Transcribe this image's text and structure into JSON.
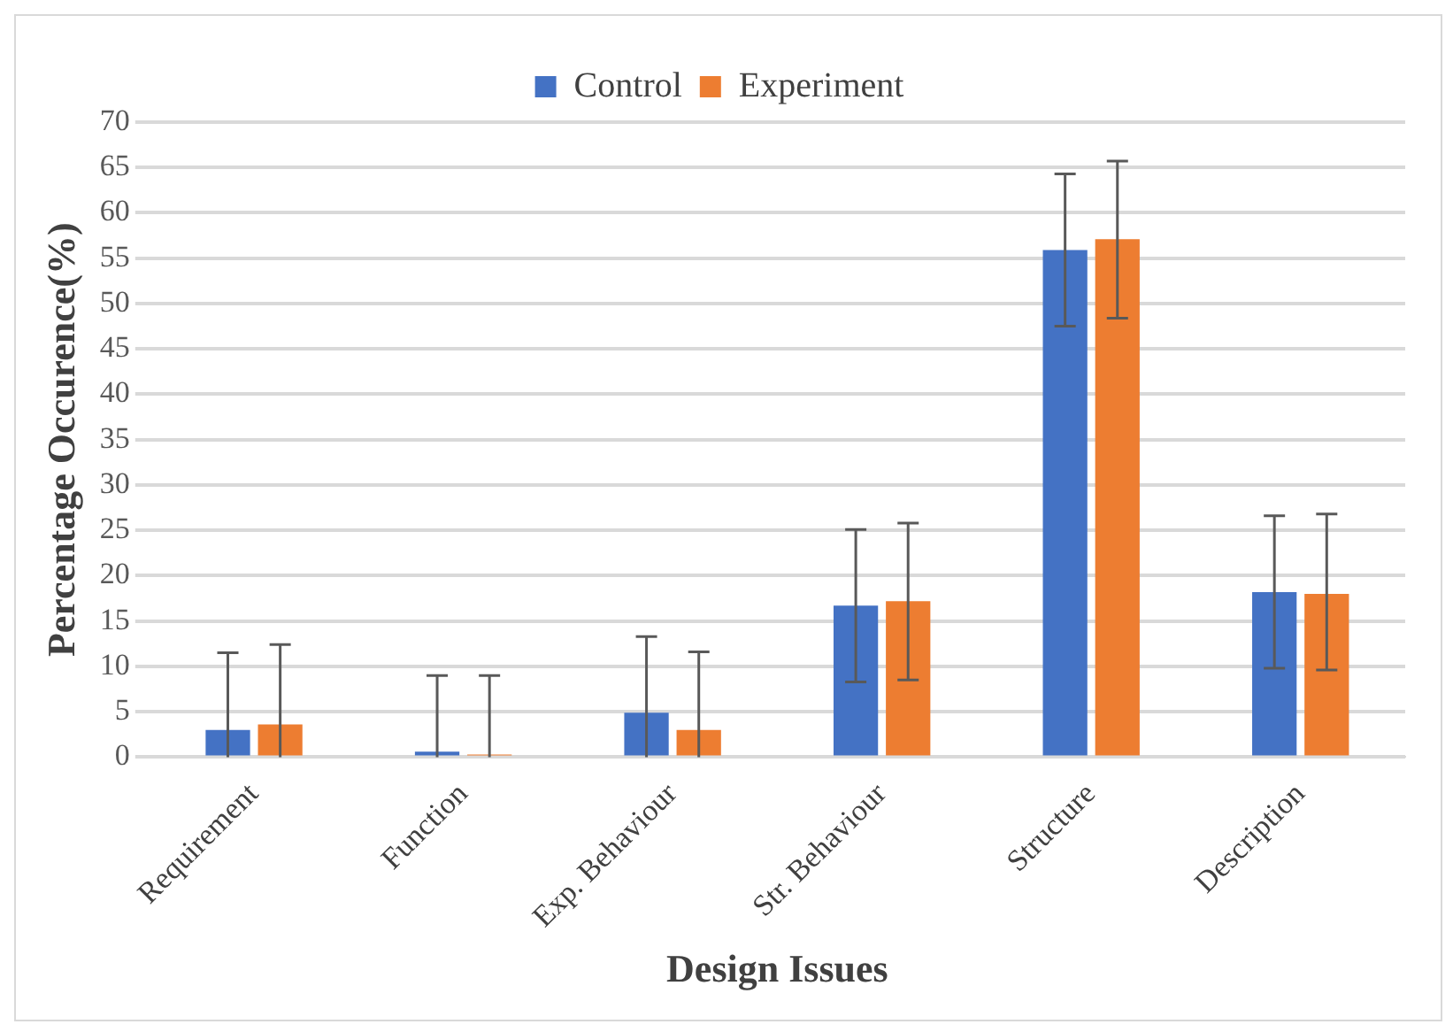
{
  "chart_data": {
    "type": "bar",
    "xlabel": "Design Issues",
    "ylabel": "Percentage Occurence(%)",
    "categories": [
      "Requirement",
      "Function",
      "Exp. Behaviour",
      "Str. Behaviour",
      "Structure",
      "Description"
    ],
    "series": [
      {
        "name": "Control",
        "color": "#4472c4",
        "values": [
          3.0,
          0.6,
          4.9,
          16.7,
          55.9,
          18.2
        ],
        "errors": [
          [
            0,
            11.5
          ],
          [
            0,
            9.0
          ],
          [
            0,
            13.3
          ],
          [
            8.3,
            25.1
          ],
          [
            47.5,
            64.3
          ],
          [
            9.8,
            26.6
          ]
        ]
      },
      {
        "name": "Experiment",
        "color": "#ed7d31",
        "values": [
          3.6,
          0.3,
          3.0,
          17.2,
          57.1,
          18.0
        ],
        "errors": [
          [
            0,
            12.4
          ],
          [
            0,
            9.0
          ],
          [
            0,
            11.6
          ],
          [
            8.5,
            25.8
          ],
          [
            48.4,
            65.7
          ],
          [
            9.6,
            26.8
          ]
        ]
      }
    ],
    "ylim": [
      0,
      70
    ],
    "yticks": [
      0,
      5,
      10,
      15,
      20,
      25,
      30,
      35,
      40,
      45,
      50,
      55,
      60,
      65,
      70
    ],
    "grid": "y",
    "legend": "top"
  }
}
